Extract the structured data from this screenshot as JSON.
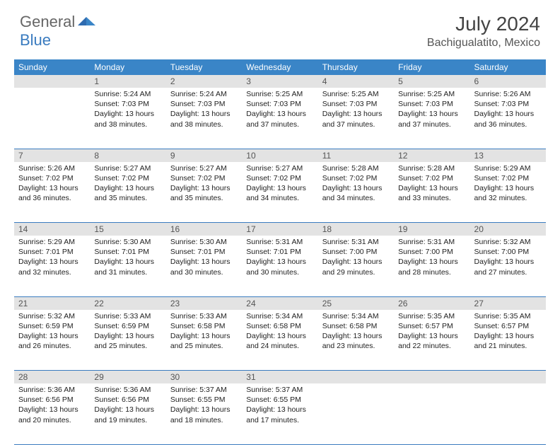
{
  "header": {
    "logo_part1": "General",
    "logo_part2": "Blue",
    "month_title": "July 2024",
    "location": "Bachigualatito, Mexico"
  },
  "styles": {
    "header_bg": "#3a85c7",
    "header_text": "#ffffff",
    "daynum_bg": "#e3e3e3",
    "rule_color": "#3a7bbf",
    "body_text": "#222222"
  },
  "day_names": [
    "Sunday",
    "Monday",
    "Tuesday",
    "Wednesday",
    "Thursday",
    "Friday",
    "Saturday"
  ],
  "weeks": [
    [
      {
        "num": "",
        "lines": []
      },
      {
        "num": "1",
        "lines": [
          "Sunrise: 5:24 AM",
          "Sunset: 7:03 PM",
          "Daylight: 13 hours and 38 minutes."
        ]
      },
      {
        "num": "2",
        "lines": [
          "Sunrise: 5:24 AM",
          "Sunset: 7:03 PM",
          "Daylight: 13 hours and 38 minutes."
        ]
      },
      {
        "num": "3",
        "lines": [
          "Sunrise: 5:25 AM",
          "Sunset: 7:03 PM",
          "Daylight: 13 hours and 37 minutes."
        ]
      },
      {
        "num": "4",
        "lines": [
          "Sunrise: 5:25 AM",
          "Sunset: 7:03 PM",
          "Daylight: 13 hours and 37 minutes."
        ]
      },
      {
        "num": "5",
        "lines": [
          "Sunrise: 5:25 AM",
          "Sunset: 7:03 PM",
          "Daylight: 13 hours and 37 minutes."
        ]
      },
      {
        "num": "6",
        "lines": [
          "Sunrise: 5:26 AM",
          "Sunset: 7:03 PM",
          "Daylight: 13 hours and 36 minutes."
        ]
      }
    ],
    [
      {
        "num": "7",
        "lines": [
          "Sunrise: 5:26 AM",
          "Sunset: 7:02 PM",
          "Daylight: 13 hours and 36 minutes."
        ]
      },
      {
        "num": "8",
        "lines": [
          "Sunrise: 5:27 AM",
          "Sunset: 7:02 PM",
          "Daylight: 13 hours and 35 minutes."
        ]
      },
      {
        "num": "9",
        "lines": [
          "Sunrise: 5:27 AM",
          "Sunset: 7:02 PM",
          "Daylight: 13 hours and 35 minutes."
        ]
      },
      {
        "num": "10",
        "lines": [
          "Sunrise: 5:27 AM",
          "Sunset: 7:02 PM",
          "Daylight: 13 hours and 34 minutes."
        ]
      },
      {
        "num": "11",
        "lines": [
          "Sunrise: 5:28 AM",
          "Sunset: 7:02 PM",
          "Daylight: 13 hours and 34 minutes."
        ]
      },
      {
        "num": "12",
        "lines": [
          "Sunrise: 5:28 AM",
          "Sunset: 7:02 PM",
          "Daylight: 13 hours and 33 minutes."
        ]
      },
      {
        "num": "13",
        "lines": [
          "Sunrise: 5:29 AM",
          "Sunset: 7:02 PM",
          "Daylight: 13 hours and 32 minutes."
        ]
      }
    ],
    [
      {
        "num": "14",
        "lines": [
          "Sunrise: 5:29 AM",
          "Sunset: 7:01 PM",
          "Daylight: 13 hours and 32 minutes."
        ]
      },
      {
        "num": "15",
        "lines": [
          "Sunrise: 5:30 AM",
          "Sunset: 7:01 PM",
          "Daylight: 13 hours and 31 minutes."
        ]
      },
      {
        "num": "16",
        "lines": [
          "Sunrise: 5:30 AM",
          "Sunset: 7:01 PM",
          "Daylight: 13 hours and 30 minutes."
        ]
      },
      {
        "num": "17",
        "lines": [
          "Sunrise: 5:31 AM",
          "Sunset: 7:01 PM",
          "Daylight: 13 hours and 30 minutes."
        ]
      },
      {
        "num": "18",
        "lines": [
          "Sunrise: 5:31 AM",
          "Sunset: 7:00 PM",
          "Daylight: 13 hours and 29 minutes."
        ]
      },
      {
        "num": "19",
        "lines": [
          "Sunrise: 5:31 AM",
          "Sunset: 7:00 PM",
          "Daylight: 13 hours and 28 minutes."
        ]
      },
      {
        "num": "20",
        "lines": [
          "Sunrise: 5:32 AM",
          "Sunset: 7:00 PM",
          "Daylight: 13 hours and 27 minutes."
        ]
      }
    ],
    [
      {
        "num": "21",
        "lines": [
          "Sunrise: 5:32 AM",
          "Sunset: 6:59 PM",
          "Daylight: 13 hours and 26 minutes."
        ]
      },
      {
        "num": "22",
        "lines": [
          "Sunrise: 5:33 AM",
          "Sunset: 6:59 PM",
          "Daylight: 13 hours and 25 minutes."
        ]
      },
      {
        "num": "23",
        "lines": [
          "Sunrise: 5:33 AM",
          "Sunset: 6:58 PM",
          "Daylight: 13 hours and 25 minutes."
        ]
      },
      {
        "num": "24",
        "lines": [
          "Sunrise: 5:34 AM",
          "Sunset: 6:58 PM",
          "Daylight: 13 hours and 24 minutes."
        ]
      },
      {
        "num": "25",
        "lines": [
          "Sunrise: 5:34 AM",
          "Sunset: 6:58 PM",
          "Daylight: 13 hours and 23 minutes."
        ]
      },
      {
        "num": "26",
        "lines": [
          "Sunrise: 5:35 AM",
          "Sunset: 6:57 PM",
          "Daylight: 13 hours and 22 minutes."
        ]
      },
      {
        "num": "27",
        "lines": [
          "Sunrise: 5:35 AM",
          "Sunset: 6:57 PM",
          "Daylight: 13 hours and 21 minutes."
        ]
      }
    ],
    [
      {
        "num": "28",
        "lines": [
          "Sunrise: 5:36 AM",
          "Sunset: 6:56 PM",
          "Daylight: 13 hours and 20 minutes."
        ]
      },
      {
        "num": "29",
        "lines": [
          "Sunrise: 5:36 AM",
          "Sunset: 6:56 PM",
          "Daylight: 13 hours and 19 minutes."
        ]
      },
      {
        "num": "30",
        "lines": [
          "Sunrise: 5:37 AM",
          "Sunset: 6:55 PM",
          "Daylight: 13 hours and 18 minutes."
        ]
      },
      {
        "num": "31",
        "lines": [
          "Sunrise: 5:37 AM",
          "Sunset: 6:55 PM",
          "Daylight: 13 hours and 17 minutes."
        ]
      },
      {
        "num": "",
        "lines": []
      },
      {
        "num": "",
        "lines": []
      },
      {
        "num": "",
        "lines": []
      }
    ]
  ]
}
